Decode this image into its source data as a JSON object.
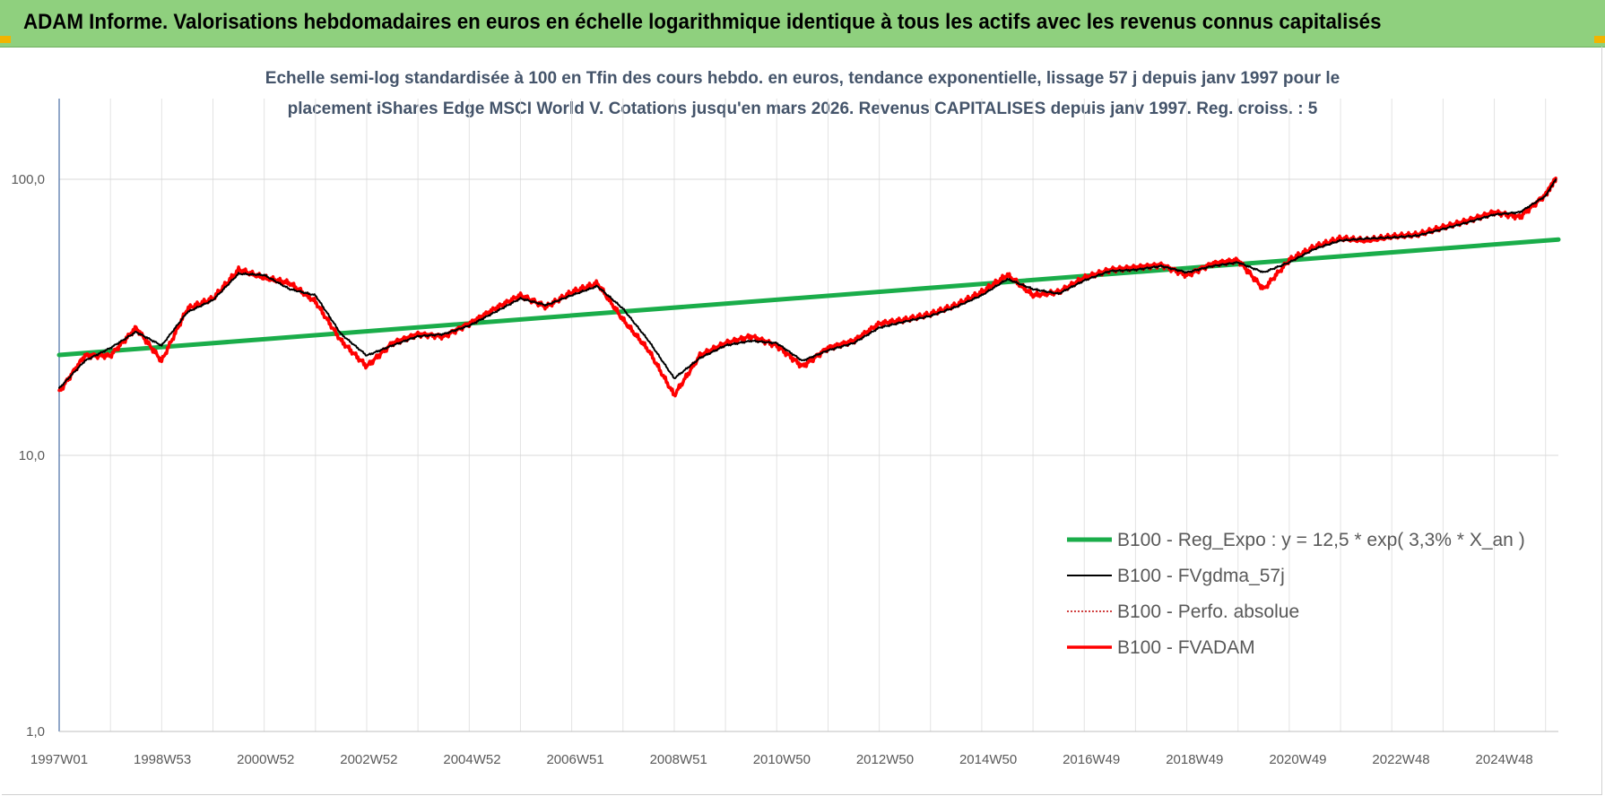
{
  "banner": {
    "title": "ADAM Informe. Valorisations hebdomadaires en euros en échelle logarithmique identique à tous les actifs avec les revenus connus capitalisés"
  },
  "colors": {
    "banner": "#8fd07e",
    "accent_corner": "#f2b400",
    "subtitle_text": "#44546a",
    "regression": "#1aad4a",
    "moving_average": "#000000",
    "absolute_perf": "#c00000",
    "fvadam": "#ff0000"
  },
  "chart_data": {
    "type": "line",
    "title": "Echelle semi-log standardisée à 100 en Tfin des cours hebdo. en euros, tendance exponentielle, lissage 57 j depuis janv 1997 pour le placement iShares Edge MSCI World V. Cotations jusqu'en mars 2026. Revenus CAPITALISES depuis janv 1997. Reg. croiss. : 5",
    "title_lines": [
      "Echelle semi-log standardisée à 100 en Tfin des cours hebdo. en euros, tendance exponentielle, lissage 57 j depuis janv 1997 pour le",
      "placement iShares Edge MSCI World V. Cotations jusqu'en mars 2026. Revenus CAPITALISES depuis janv 1997. Reg. croiss. : 5"
    ],
    "y_scale": "log",
    "ylim": [
      1,
      100
    ],
    "grid": true,
    "legend_position": "bottom-right",
    "x_tick_labels": [
      "1997W01",
      "1998W53",
      "2000W52",
      "2002W52",
      "2004W52",
      "2006W51",
      "2008W51",
      "2010W50",
      "2012W50",
      "2014W50",
      "2016W49",
      "2018W49",
      "2020W49",
      "2022W48",
      "2024W48"
    ],
    "y_tick_labels": [
      {
        "value": 1,
        "label": "1,0"
      },
      {
        "value": 10,
        "label": "10,0"
      },
      {
        "value": 100,
        "label": "100,0"
      }
    ],
    "x_start_year": 1997.0,
    "x_end_year": 2026.25,
    "series": [
      {
        "name": "B100 - Reg_Expo : y = 12,5 * exp( 3,3% *  X_an )",
        "style": "regression",
        "x": [
          1997.0,
          2026.25
        ],
        "values": [
          23.1,
          60.5
        ]
      },
      {
        "name": "B100 - FVgdma_57j",
        "style": "moving_average",
        "x": [
          1997.0,
          1997.5,
          1998.0,
          1998.5,
          1999.0,
          1999.5,
          2000.0,
          2000.5,
          2001.0,
          2001.5,
          2002.0,
          2002.5,
          2003.0,
          2003.5,
          2004.0,
          2004.5,
          2005.0,
          2005.5,
          2006.0,
          2006.5,
          2007.0,
          2007.5,
          2008.0,
          2008.5,
          2009.0,
          2009.5,
          2010.0,
          2010.5,
          2011.0,
          2011.5,
          2012.0,
          2012.5,
          2013.0,
          2013.5,
          2014.0,
          2014.5,
          2015.0,
          2015.5,
          2016.0,
          2016.5,
          2017.0,
          2017.5,
          2018.0,
          2018.5,
          2019.0,
          2019.5,
          2020.0,
          2020.5,
          2021.0,
          2021.5,
          2022.0,
          2022.5,
          2023.0,
          2023.5,
          2024.0,
          2024.5,
          2025.0,
          2025.5,
          2026.0,
          2026.2
        ],
        "values": [
          17.5,
          22.0,
          24.5,
          28.0,
          25.0,
          33.0,
          36.5,
          45.5,
          45.0,
          40.0,
          38.0,
          27.5,
          23.0,
          25.0,
          27.0,
          27.5,
          29.5,
          33.0,
          37.0,
          35.0,
          38.0,
          41.0,
          34.0,
          26.0,
          19.0,
          22.5,
          25.0,
          26.0,
          25.5,
          22.0,
          24.0,
          25.5,
          29.0,
          30.5,
          32.0,
          34.5,
          38.0,
          43.5,
          40.0,
          38.5,
          43.0,
          46.5,
          47.0,
          48.5,
          46.0,
          48.5,
          50.0,
          46.0,
          50.0,
          56.0,
          60.0,
          61.0,
          61.5,
          62.5,
          66.0,
          70.0,
          74.5,
          76.0,
          87.0,
          100.0
        ]
      },
      {
        "name": "B100 - Perfo. absolue",
        "style": "absolute_perf",
        "x": [],
        "values": []
      },
      {
        "name": "B100 - FVADAM",
        "style": "fvadam",
        "x": [
          1997.0,
          1997.5,
          1998.0,
          1998.5,
          1999.0,
          1999.5,
          2000.0,
          2000.5,
          2001.0,
          2001.5,
          2002.0,
          2002.5,
          2003.0,
          2003.5,
          2004.0,
          2004.5,
          2005.0,
          2005.5,
          2006.0,
          2006.5,
          2007.0,
          2007.5,
          2008.0,
          2008.5,
          2009.0,
          2009.5,
          2010.0,
          2010.5,
          2011.0,
          2011.5,
          2012.0,
          2012.5,
          2013.0,
          2013.5,
          2014.0,
          2014.5,
          2015.0,
          2015.5,
          2016.0,
          2016.5,
          2017.0,
          2017.5,
          2018.0,
          2018.5,
          2019.0,
          2019.5,
          2020.0,
          2020.5,
          2021.0,
          2021.5,
          2022.0,
          2022.5,
          2023.0,
          2023.5,
          2024.0,
          2024.5,
          2025.0,
          2025.5,
          2026.0,
          2026.2
        ],
        "values": [
          17.0,
          23.0,
          23.0,
          29.0,
          22.0,
          34.0,
          37.0,
          47.0,
          44.0,
          42.0,
          36.0,
          26.0,
          21.0,
          25.5,
          27.5,
          27.0,
          30.0,
          34.0,
          38.0,
          34.5,
          39.0,
          42.0,
          31.0,
          24.0,
          16.5,
          23.0,
          25.5,
          27.0,
          25.0,
          21.0,
          24.5,
          26.0,
          30.0,
          31.0,
          32.5,
          35.0,
          39.0,
          45.0,
          38.0,
          39.0,
          44.0,
          47.0,
          48.0,
          49.0,
          45.0,
          49.5,
          51.0,
          40.0,
          51.0,
          57.0,
          61.0,
          60.0,
          62.0,
          63.0,
          67.0,
          71.0,
          76.0,
          73.0,
          88.0,
          101.0
        ]
      }
    ]
  }
}
